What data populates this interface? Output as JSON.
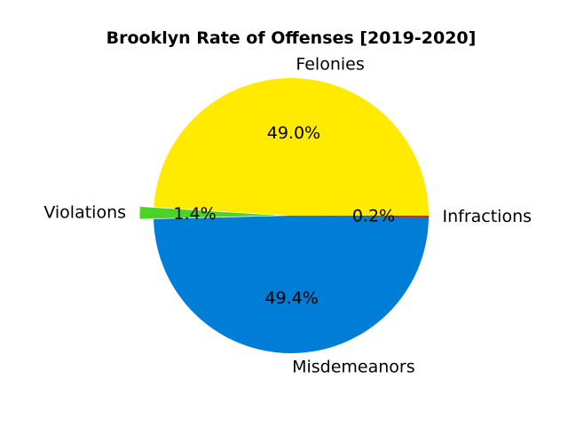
{
  "chart_data": {
    "type": "pie",
    "title": "Brooklyn Rate of Offenses [2019-2020]",
    "slices": [
      {
        "label": "Felonies",
        "value": 49.0,
        "pct_text": "49.0%",
        "color": "#FFEA00",
        "exploded": false
      },
      {
        "label": "Violations",
        "value": 1.4,
        "pct_text": "1.4%",
        "color": "#4CD425",
        "exploded": true
      },
      {
        "label": "Misdemeanors",
        "value": 49.4,
        "pct_text": "49.4%",
        "color": "#007DD6",
        "exploded": false
      },
      {
        "label": "Infractions",
        "value": 0.2,
        "pct_text": "0.2%",
        "color": "#E01010",
        "exploded": false
      }
    ],
    "start_angle_deg": 0,
    "direction": "counterclockwise",
    "legend": "none"
  }
}
